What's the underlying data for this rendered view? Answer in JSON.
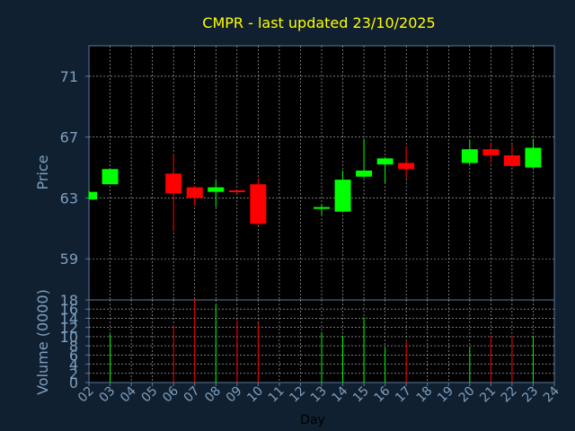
{
  "chart_data": {
    "type": "candlestick",
    "title": "CMPR - last updated 23/10/2025",
    "xlabel": "Day",
    "price_panel": {
      "ylabel": "Price",
      "yticks": [
        59,
        63,
        67,
        71
      ],
      "ylim": [
        56.3,
        73.0
      ],
      "grid": true
    },
    "volume_panel": {
      "ylabel": "Volume (0000)",
      "yticks": [
        0,
        2,
        4,
        6,
        8,
        10,
        12,
        14,
        16,
        18
      ],
      "ylim": [
        0,
        18
      ],
      "grid": true
    },
    "x_tick_labels": [
      "02",
      "03",
      "04",
      "05",
      "06",
      "07",
      "08",
      "09",
      "10",
      "11",
      "12",
      "13",
      "14",
      "15",
      "16",
      "17",
      "18",
      "19",
      "20",
      "21",
      "22",
      "23",
      "24"
    ],
    "up_color": "#00ff00",
    "down_color": "#ff0000",
    "candles": [
      {
        "day": "02",
        "open": 62.9,
        "high": 63.5,
        "low": 62.9,
        "close": 63.4,
        "volume": 0
      },
      {
        "day": "03",
        "open": 63.9,
        "high": 64.9,
        "low": 63.9,
        "close": 64.9,
        "volume": 10.5
      },
      {
        "day": "06",
        "open": 64.6,
        "high": 65.9,
        "low": 60.8,
        "close": 63.3,
        "volume": 12.5
      },
      {
        "day": "07",
        "open": 63.7,
        "high": 63.8,
        "low": 62.5,
        "close": 63.0,
        "volume": 18
      },
      {
        "day": "08",
        "open": 63.4,
        "high": 64.2,
        "low": 62.4,
        "close": 63.7,
        "volume": 17
      },
      {
        "day": "09",
        "open": 63.5,
        "high": 63.5,
        "low": 63.3,
        "close": 63.4,
        "volume": 13.5
      },
      {
        "day": "10",
        "open": 63.9,
        "high": 64.3,
        "low": 61.2,
        "close": 61.3,
        "volume": 13
      },
      {
        "day": "13",
        "open": 62.3,
        "high": 62.6,
        "low": 61.9,
        "close": 62.4,
        "volume": 11
      },
      {
        "day": "14",
        "open": 62.1,
        "high": 64.8,
        "low": 62.1,
        "close": 64.2,
        "volume": 10.2
      },
      {
        "day": "15",
        "open": 64.4,
        "high": 66.9,
        "low": 64.3,
        "close": 64.8,
        "volume": 14.2
      },
      {
        "day": "16",
        "open": 65.2,
        "high": 65.7,
        "low": 64.0,
        "close": 65.6,
        "volume": 7.6
      },
      {
        "day": "17",
        "open": 65.3,
        "high": 66.4,
        "low": 64.3,
        "close": 64.9,
        "volume": 8.9
      },
      {
        "day": "20",
        "open": 65.3,
        "high": 66.8,
        "low": 65.2,
        "close": 66.2,
        "volume": 7.7
      },
      {
        "day": "21",
        "open": 66.2,
        "high": 66.6,
        "low": 65.3,
        "close": 65.8,
        "volume": 10.2
      },
      {
        "day": "22",
        "open": 65.8,
        "high": 66.5,
        "low": 65.0,
        "close": 65.1,
        "volume": 10.2
      },
      {
        "day": "23",
        "open": 65.0,
        "high": 66.9,
        "low": 64.9,
        "close": 66.3,
        "volume": 10.2
      }
    ]
  }
}
